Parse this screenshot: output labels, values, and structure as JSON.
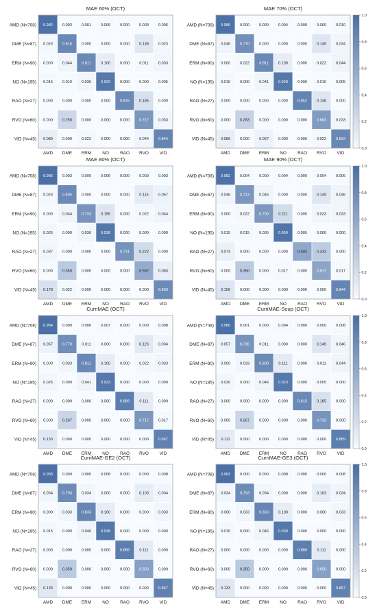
{
  "chart_data": [
    {
      "type": "heatmap",
      "title": "MAE 60% (OCT)",
      "row_labels": [
        "AMD (N=708)",
        "DME (N=87)",
        "ERM (N=90)",
        "NO (N=195)",
        "RAO (N=27)",
        "RVO (N=60)",
        "VID (N=45)"
      ],
      "col_labels": [
        "AMD",
        "DME",
        "ERM",
        "NO",
        "RAO",
        "RVO",
        "VID"
      ],
      "values": [
        [
          0.982,
          0.003,
          0.001,
          0.006,
          0.0,
          0.003,
          0.006
        ],
        [
          0.023,
          0.816,
          0.0,
          0.0,
          0.0,
          0.138,
          0.023
        ],
        [
          0.0,
          0.044,
          0.811,
          0.1,
          0.0,
          0.011,
          0.033
        ],
        [
          0.015,
          0.01,
          0.036,
          0.933,
          0.0,
          0.0,
          0.005
        ],
        [
          0.0,
          0.0,
          0.0,
          0.0,
          0.815,
          0.185,
          0.0
        ],
        [
          0.0,
          0.25,
          0.0,
          0.0,
          0.0,
          0.717,
          0.033
        ],
        [
          0.089,
          0.0,
          0.022,
          0.0,
          0.0,
          0.044,
          0.844
        ]
      ],
      "colorbar_ticks": [
        "0.0",
        "0.2",
        "0.4",
        "0.6",
        "0.8",
        "1.0"
      ],
      "vmin": 0,
      "vmax": 1
    },
    {
      "type": "heatmap",
      "title": "MAE 70% (OCT)",
      "row_labels": [
        "AMD (N=708)",
        "DME (N=87)",
        "ERM (N=90)",
        "NO (N=195)",
        "RAO (N=27)",
        "RVO (N=60)",
        "VID (N=45)"
      ],
      "col_labels": [
        "AMD",
        "DME",
        "ERM",
        "NO",
        "RAO",
        "RVO",
        "VID"
      ],
      "values": [
        [
          0.986,
          0.0,
          0.0,
          0.004,
          0.0,
          0.0,
          0.01
        ],
        [
          0.046,
          0.77,
          0.0,
          0.0,
          0.0,
          0.149,
          0.034
        ],
        [
          0.0,
          0.022,
          0.811,
          0.1,
          0.0,
          0.022,
          0.044
        ],
        [
          0.015,
          0.0,
          0.041,
          0.928,
          0.0,
          0.01,
          0.005
        ],
        [
          0.0,
          0.0,
          0.0,
          0.0,
          0.852,
          0.148,
          0.0
        ],
        [
          0.0,
          0.283,
          0.0,
          0.0,
          0.0,
          0.683,
          0.033
        ],
        [
          0.089,
          0.0,
          0.067,
          0.0,
          0.0,
          0.022,
          0.822
        ]
      ],
      "colorbar_ticks": [
        "0.0",
        "0.2",
        "0.4",
        "0.6",
        "0.8",
        "1.0"
      ],
      "vmin": 0,
      "vmax": 1
    },
    {
      "type": "heatmap",
      "title": "MAE 80% (OCT)",
      "row_labels": [
        "AMD (N=708)",
        "DME (N=87)",
        "ERM (N=90)",
        "NO (N=195)",
        "RAO (N=27)",
        "RVO (N=60)",
        "VID (N=45)"
      ],
      "col_labels": [
        "AMD",
        "DME",
        "ERM",
        "NO",
        "RAO",
        "RVO",
        "VID"
      ],
      "values": [
        [
          0.986,
          0.003,
          0.0,
          0.006,
          0.0,
          0.003,
          0.003
        ],
        [
          0.023,
          0.805,
          0.0,
          0.0,
          0.0,
          0.115,
          0.057
        ],
        [
          0.0,
          0.044,
          0.733,
          0.156,
          0.0,
          0.022,
          0.044
        ],
        [
          0.026,
          0.0,
          0.036,
          0.938,
          0.0,
          0.0,
          0.0
        ],
        [
          0.037,
          0.0,
          0.0,
          0.0,
          0.741,
          0.222,
          0.0
        ],
        [
          0.0,
          0.35,
          0.0,
          0.0,
          0.0,
          0.567,
          0.083
        ],
        [
          0.178,
          0.022,
          0.0,
          0.0,
          0.0,
          0.0,
          0.8
        ]
      ],
      "colorbar_ticks": [
        "0.0",
        "0.2",
        "0.4",
        "0.6",
        "0.8",
        "1.0"
      ],
      "vmin": 0,
      "vmax": 1
    },
    {
      "type": "heatmap",
      "title": "MAE 90% (OCT)",
      "row_labels": [
        "AMD (N=708)",
        "DME (N=87)",
        "ERM (N=90)",
        "NO (N=195)",
        "RAO (N=27)",
        "RVO (N=60)",
        "VID (N=45)"
      ],
      "col_labels": [
        "AMD",
        "DME",
        "ERM",
        "NO",
        "RAO",
        "RVO",
        "VID"
      ],
      "values": [
        [
          0.982,
          0.004,
          0.0,
          0.004,
          0.0,
          0.004,
          0.006
        ],
        [
          0.046,
          0.713,
          0.046,
          0.0,
          0.0,
          0.149,
          0.046
        ],
        [
          0.0,
          0.022,
          0.7,
          0.211,
          0.0,
          0.033,
          0.033
        ],
        [
          0.015,
          0.015,
          0.005,
          0.959,
          0.005,
          0.0,
          0.0
        ],
        [
          0.074,
          0.0,
          0.0,
          0.0,
          0.593,
          0.333,
          0.0
        ],
        [
          0.0,
          0.35,
          0.0,
          0.017,
          0.0,
          0.617,
          0.017
        ],
        [
          0.156,
          0.0,
          0.0,
          0.0,
          0.0,
          0.0,
          0.844
        ]
      ],
      "colorbar_ticks": [
        "0.0",
        "0.2",
        "0.4",
        "0.6",
        "0.8",
        "1.0"
      ],
      "vmin": 0,
      "vmax": 1
    },
    {
      "type": "heatmap",
      "title": "CurriMAE (OCT)",
      "row_labels": [
        "AMD (N=708)",
        "DME (N=87)",
        "ERM (N=90)",
        "NO (N=195)",
        "RAO (N=27)",
        "RVO (N=60)",
        "VID (N=45)"
      ],
      "col_labels": [
        "AMD",
        "DME",
        "ERM",
        "NO",
        "RAO",
        "RVO",
        "VID"
      ],
      "values": [
        [
          0.984,
          0.0,
          0.0,
          0.007,
          0.0,
          0.0,
          0.008
        ],
        [
          0.057,
          0.77,
          0.011,
          0.0,
          0.0,
          0.126,
          0.034
        ],
        [
          0.0,
          0.033,
          0.811,
          0.1,
          0.0,
          0.022,
          0.033
        ],
        [
          0.026,
          0.0,
          0.041,
          0.933,
          0.0,
          0.0,
          0.0
        ],
        [
          0.0,
          0.0,
          0.0,
          0.0,
          0.889,
          0.111,
          0.0
        ],
        [
          0.0,
          0.267,
          0.0,
          0.0,
          0.0,
          0.717,
          0.017
        ],
        [
          0.133,
          0.0,
          0.0,
          0.0,
          0.0,
          0.0,
          0.867
        ]
      ],
      "colorbar_ticks": [
        "0.0",
        "0.2",
        "0.4",
        "0.6",
        "0.8",
        "1.0"
      ],
      "vmin": 0,
      "vmax": 1
    },
    {
      "type": "heatmap",
      "title": "CurriMAE-Soup (OCT)",
      "row_labels": [
        "AMD (N=708)",
        "DME (N=87)",
        "ERM (N=90)",
        "NO (N=195)",
        "RAO (N=27)",
        "RVO (N=60)",
        "VID (N=45)"
      ],
      "col_labels": [
        "AMD",
        "DME",
        "ERM",
        "NO",
        "RAO",
        "RVO",
        "VID"
      ],
      "values": [
        [
          0.986,
          0.001,
          0.0,
          0.004,
          0.0,
          0.0,
          0.008
        ],
        [
          0.057,
          0.736,
          0.011,
          0.0,
          0.0,
          0.149,
          0.046
        ],
        [
          0.0,
          0.033,
          0.8,
          0.111,
          0.0,
          0.011,
          0.044
        ],
        [
          0.026,
          0.0,
          0.046,
          0.923,
          0.0,
          0.005,
          0.0
        ],
        [
          0.0,
          0.0,
          0.0,
          0.0,
          0.815,
          0.185,
          0.0
        ],
        [
          0.0,
          0.267,
          0.0,
          0.0,
          0.0,
          0.733,
          0.0
        ],
        [
          0.111,
          0.0,
          0.0,
          0.0,
          0.0,
          0.0,
          0.889
        ]
      ],
      "colorbar_ticks": [
        "0.0",
        "0.2",
        "0.4",
        "0.6",
        "0.8",
        "1.0"
      ],
      "vmin": 0,
      "vmax": 1
    },
    {
      "type": "heatmap",
      "title": "CurriMAE-GE2 (OCT)",
      "row_labels": [
        "AMD (N=708)",
        "DME (N=87)",
        "ERM (N=90)",
        "NO (N=195)",
        "RAO (N=27)",
        "RVO (N=60)",
        "VID (N=45)"
      ],
      "col_labels": [
        "AMD",
        "DME",
        "ERM",
        "NO",
        "RAO",
        "RVO",
        "VID"
      ],
      "values": [
        [
          0.983,
          0.0,
          0.0,
          0.008,
          0.0,
          0.0,
          0.008
        ],
        [
          0.034,
          0.793,
          0.034,
          0.0,
          0.0,
          0.103,
          0.034
        ],
        [
          0.0,
          0.033,
          0.833,
          0.1,
          0.0,
          0.0,
          0.033
        ],
        [
          0.015,
          0.0,
          0.046,
          0.938,
          0.0,
          0.0,
          0.0
        ],
        [
          0.0,
          0.0,
          0.0,
          0.0,
          0.889,
          0.111,
          0.0
        ],
        [
          0.0,
          0.35,
          0.0,
          0.0,
          0.0,
          0.65,
          0.0
        ],
        [
          0.133,
          0.0,
          0.0,
          0.0,
          0.0,
          0.0,
          0.867
        ]
      ],
      "colorbar_ticks": [
        "0.0",
        "0.2",
        "0.4",
        "0.6",
        "0.8",
        "1.0"
      ],
      "vmin": 0,
      "vmax": 1
    },
    {
      "type": "heatmap",
      "title": "CurriMAE-GE3 (OCT)",
      "row_labels": [
        "AMD (N=708)",
        "DME (N=87)",
        "ERM (N=90)",
        "NO (N=195)",
        "RAO (N=27)",
        "RVO (N=60)",
        "VID (N=45)"
      ],
      "col_labels": [
        "AMD",
        "DME",
        "ERM",
        "NO",
        "RAO",
        "RVO",
        "VID"
      ],
      "values": [
        [
          0.983,
          0.0,
          0.0,
          0.008,
          0.0,
          0.0,
          0.008
        ],
        [
          0.034,
          0.793,
          0.034,
          0.0,
          0.0,
          0.103,
          0.034
        ],
        [
          0.0,
          0.033,
          0.833,
          0.1,
          0.0,
          0.0,
          0.033
        ],
        [
          0.015,
          0.0,
          0.046,
          0.938,
          0.0,
          0.0,
          0.0
        ],
        [
          0.0,
          0.0,
          0.0,
          0.0,
          0.889,
          0.111,
          0.0
        ],
        [
          0.0,
          0.35,
          0.0,
          0.0,
          0.0,
          0.65,
          0.0
        ],
        [
          0.133,
          0.0,
          0.0,
          0.0,
          0.0,
          0.0,
          0.867
        ]
      ],
      "colorbar_ticks": [
        "0.0",
        "0.2",
        "0.4",
        "0.6",
        "0.8",
        "1.0"
      ],
      "vmin": 0,
      "vmax": 1
    }
  ],
  "colors": {
    "colormap_low": "#f7fbff",
    "colormap_high": "#4a6fa5",
    "grid_line": "#ffffff",
    "cell_text": "#222222",
    "cell_text_on_dark": "#ffffff"
  }
}
